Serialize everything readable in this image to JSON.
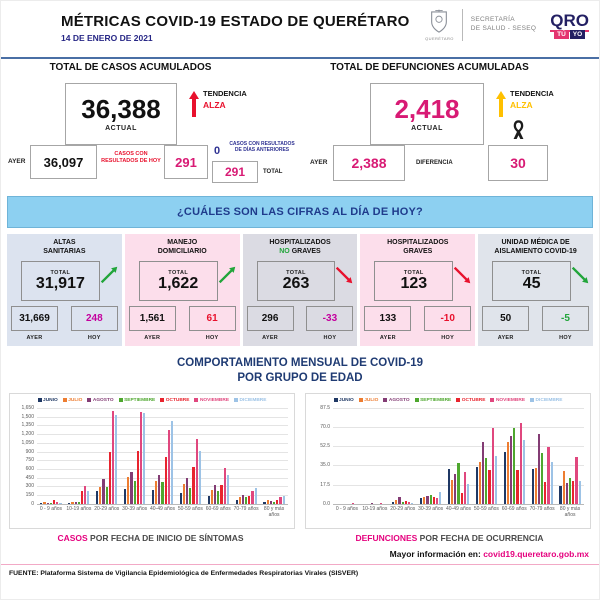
{
  "header": {
    "title": "MÉTRICAS COVID-19 ESTADO DE QUERÉTARO",
    "date": "14 DE ENERO DE 2021",
    "crest_caption": "QUERÉTARO",
    "secretaria_line1": "SECRETARÍA",
    "secretaria_line2": "DE SALUD - SESEQ",
    "qro_word": "QRO",
    "qro_tu": "TÚ",
    "qro_yo": "YO"
  },
  "cases_panel": {
    "title": "TOTAL DE CASOS ACUMULADOS",
    "actual_value": "36,388",
    "actual_label": "ACTUAL",
    "trend_label": "TENDENCIA",
    "trend_value": "ALZA",
    "ayer_label": "AYER",
    "ayer_value": "36,097",
    "today_label": "CASOS CON RESULTADOS DE HOY",
    "today_value": "291",
    "prev_days_value": "0",
    "prev_days_label": "CASOS CON RESULTADOS DE DÍAS ANTERIORES",
    "total_value": "291",
    "total_label": "TOTAL"
  },
  "deaths_panel": {
    "title": "TOTAL DE DEFUNCIONES ACUMULADAS",
    "actual_value": "2,418",
    "actual_label": "ACTUAL",
    "trend_label": "TENDENCIA",
    "trend_value": "ALZA",
    "ayer_label": "AYER",
    "ayer_value": "2,388",
    "diff_label": "DIFERENCIA",
    "diff_value": "30"
  },
  "banner": {
    "text": "¿CUÁLES SON LAS CIFRAS AL DÍA DE HOY?"
  },
  "cards": [
    {
      "line1": "ALTAS",
      "accent": "",
      "line2": "SANITARIAS",
      "total_label": "TOTAL",
      "total": "31,917",
      "ayer_label": "AYER",
      "ayer": "31,669",
      "hoy_label": "HOY",
      "hoy": "248",
      "bg": "#dce3ef",
      "hoy_color": "#c4009e",
      "trend": "up",
      "trend_color": "#21a53a"
    },
    {
      "line1": "MANEJO",
      "accent": "",
      "line2": "DOMICILIARIO",
      "total_label": "TOTAL",
      "total": "1,622",
      "ayer_label": "AYER",
      "ayer": "1,561",
      "hoy_label": "HOY",
      "hoy": "61",
      "bg": "#fcdeeb",
      "hoy_color": "#e8112d",
      "trend": "up",
      "trend_color": "#21a53a"
    },
    {
      "line1": "HOSPITALIZADOS",
      "accent": "NO ",
      "line2": "GRAVES",
      "total_label": "TOTAL",
      "total": "263",
      "ayer_label": "AYER",
      "ayer": "296",
      "hoy_label": "HOY",
      "hoy": "-33",
      "bg": "#dbdbe3",
      "hoy_color": "#c4009e",
      "trend": "down",
      "trend_color": "#e8112d"
    },
    {
      "line1": "HOSPITALIZADOS",
      "accent": "",
      "line2": "GRAVES",
      "total_label": "TOTAL",
      "total": "123",
      "ayer_label": "AYER",
      "ayer": "133",
      "hoy_label": "HOY",
      "hoy": "-10",
      "bg": "#fcdeeb",
      "hoy_color": "#e8112d",
      "trend": "down",
      "trend_color": "#e8112d"
    },
    {
      "line1": "UNIDAD MÉDICA DE",
      "accent": "",
      "line2": "AISLAMIENTO COVID-19",
      "total_label": "TOTAL",
      "total": "45",
      "ayer_label": "AYER",
      "ayer": "50",
      "hoy_label": "HOY",
      "hoy": "-5",
      "bg": "#e0e4eb",
      "hoy_color": "#21a53a",
      "trend": "down",
      "trend_color": "#21a53a"
    }
  ],
  "charts_section": {
    "title_line1": "COMPORTAMIENTO MENSUAL DE COVID-19",
    "title_line2": "POR GRUPO DE EDAD"
  },
  "chart_data": [
    {
      "type": "bar",
      "title": "CASOS POR FECHA DE INICIO DE SÍNTOMAS",
      "categories": [
        "0 - 9 años",
        "10-19 años",
        "20-29 años",
        "30-39 años",
        "40-49 años",
        "50-59 años",
        "60-69 años",
        "70-79 años",
        "80 y más años"
      ],
      "series": [
        {
          "name": "JUNIO",
          "color": "#1f3864",
          "values": [
            8,
            15,
            225,
            250,
            240,
            180,
            130,
            70,
            30
          ]
        },
        {
          "name": "JULIO",
          "color": "#ed7d31",
          "values": [
            25,
            25,
            290,
            455,
            395,
            345,
            240,
            120,
            60
          ]
        },
        {
          "name": "AGOSTO",
          "color": "#833c74",
          "values": [
            15,
            40,
            420,
            555,
            495,
            450,
            330,
            160,
            50
          ]
        },
        {
          "name": "SEPTIEMBRE",
          "color": "#4ea72e",
          "values": [
            10,
            40,
            290,
            390,
            370,
            280,
            230,
            110,
            40
          ]
        },
        {
          "name": "OCTUBRE",
          "color": "#e8242e",
          "values": [
            60,
            230,
            900,
            910,
            810,
            640,
            330,
            140,
            60
          ]
        },
        {
          "name": "NOVIEMBRE",
          "color": "#e0477e",
          "values": [
            30,
            300,
            1590,
            1580,
            1270,
            1120,
            620,
            230,
            110
          ]
        },
        {
          "name": "DICIEMBRE",
          "color": "#9dc3e6",
          "values": [
            15,
            220,
            1520,
            1555,
            1420,
            910,
            490,
            270,
            130
          ]
        }
      ],
      "xlabel": "",
      "ylabel": "",
      "ylim": [
        0,
        1650
      ],
      "yticks": [
        "0",
        "150",
        "300",
        "450",
        "600",
        "750",
        "900",
        "1,050",
        "1,200",
        "1,350",
        "1,500",
        "1,650"
      ],
      "grid": true,
      "legend_position": "top"
    },
    {
      "type": "bar",
      "title": "DEFUNCIONES POR FECHA DE OCURRENCIA",
      "categories": [
        "0 - 9 años",
        "10-19 años",
        "20-29 años",
        "30-39 años",
        "40-49 años",
        "50-59 años",
        "60-69 años",
        "70-79 años",
        "80 y más años"
      ],
      "series": [
        {
          "name": "JUNIO",
          "color": "#1f3864",
          "values": [
            0,
            0,
            2,
            5,
            32,
            34,
            47,
            32,
            16
          ]
        },
        {
          "name": "JULIO",
          "color": "#ed7d31",
          "values": [
            0,
            0,
            4,
            6,
            22,
            38,
            56,
            33,
            30
          ]
        },
        {
          "name": "AGOSTO",
          "color": "#833c74",
          "values": [
            0,
            1,
            6,
            7,
            27,
            56,
            62,
            64,
            19
          ]
        },
        {
          "name": "SEPTIEMBRE",
          "color": "#4ea72e",
          "values": [
            0,
            0,
            2,
            8,
            37,
            42,
            69,
            46,
            24
          ]
        },
        {
          "name": "OCTUBRE",
          "color": "#e8242e",
          "values": [
            0,
            0,
            3,
            6,
            10,
            31,
            31,
            20,
            21
          ]
        },
        {
          "name": "NOVIEMBRE",
          "color": "#e0477e",
          "values": [
            1,
            1,
            2,
            5,
            29,
            69,
            74,
            52,
            43
          ]
        },
        {
          "name": "DICIEMBRE",
          "color": "#9dc3e6",
          "values": [
            0,
            0,
            1,
            11,
            18,
            44,
            58,
            38,
            21
          ]
        }
      ],
      "xlabel": "",
      "ylabel": "",
      "ylim": [
        0,
        87.5
      ],
      "yticks": [
        "0.0",
        "17.5",
        "35.0",
        "52.5",
        "70.0",
        "87.5"
      ],
      "grid": true,
      "legend_position": "top"
    }
  ],
  "captions": [
    {
      "accent": "CASOS",
      "rest": " POR FECHA DE INICIO DE SÍNTOMAS"
    },
    {
      "accent": "DEFUNCIONES",
      "rest": " POR FECHA DE OCURRENCIA"
    }
  ],
  "footer": {
    "more_info_label": "Mayor información en: ",
    "more_info_link": "covid19.queretaro.gob.mx",
    "source": "FUENTE: Plataforma Sistema  de Vigilancia Epidemiológica de Enfermedades Respiratorias Virales (SISVER)"
  }
}
